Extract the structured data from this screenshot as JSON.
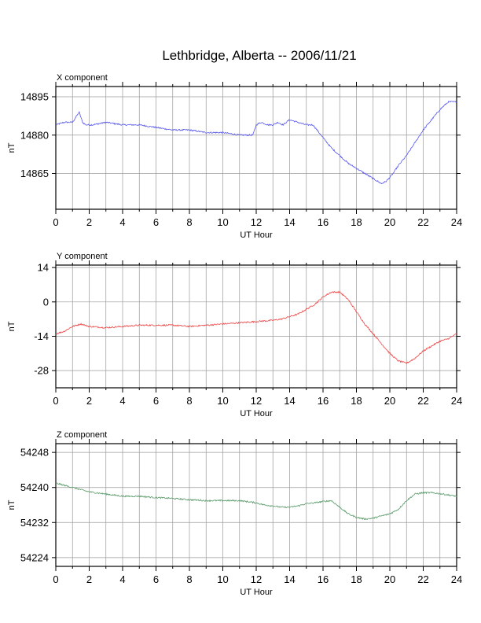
{
  "title": "Lethbridge, Alberta -- 2006/11/21",
  "chart_data": [
    {
      "type": "line",
      "panel_title": "X component",
      "xlabel": "UT Hour",
      "ylabel": "nT",
      "xlim": [
        0,
        24
      ],
      "ylim": [
        14851,
        14899
      ],
      "xticks": [
        0,
        2,
        4,
        6,
        8,
        10,
        12,
        14,
        16,
        18,
        20,
        22,
        24
      ],
      "yticks": [
        14865,
        14880,
        14895
      ],
      "grid": true,
      "color": "#5555ee",
      "x": [
        0,
        0.5,
        1.0,
        1.2,
        1.4,
        1.6,
        1.8,
        2.2,
        3,
        4,
        5,
        6,
        7,
        8,
        9,
        10,
        11,
        11.8,
        12.0,
        12.3,
        12.7,
        13.0,
        13.3,
        13.6,
        14.0,
        14.5,
        15.0,
        15.4,
        16.0,
        16.5,
        17.0,
        17.5,
        18.0,
        18.5,
        19.0,
        19.5,
        19.8,
        20.2,
        20.5,
        21.0,
        21.5,
        22.0,
        22.5,
        23.0,
        23.5,
        24.0
      ],
      "values": [
        14884,
        14885,
        14885,
        14887,
        14889,
        14885,
        14884,
        14884,
        14885,
        14884,
        14884,
        14883,
        14882,
        14882,
        14881,
        14881,
        14880,
        14880,
        14884,
        14885,
        14884,
        14884,
        14885,
        14884,
        14886,
        14885,
        14884,
        14884,
        14879,
        14875,
        14872,
        14869,
        14867,
        14865,
        14863,
        14861,
        14862,
        14865,
        14868,
        14872,
        14877,
        14882,
        14886,
        14890,
        14893,
        14893
      ]
    },
    {
      "type": "line",
      "panel_title": "Y component",
      "xlabel": "UT Hour",
      "ylabel": "nT",
      "xlim": [
        0,
        24
      ],
      "ylim": [
        -35,
        15
      ],
      "xticks": [
        0,
        2,
        4,
        6,
        8,
        10,
        12,
        14,
        16,
        18,
        20,
        22,
        24
      ],
      "yticks": [
        -28,
        -14,
        0,
        14
      ],
      "grid": true,
      "color": "#ee4444",
      "x": [
        0,
        0.5,
        1.0,
        1.5,
        2,
        3,
        4,
        5,
        6,
        7,
        8,
        9,
        10,
        11,
        12,
        13,
        13.5,
        14,
        14.5,
        15,
        15.5,
        16,
        16.5,
        17,
        17.5,
        18,
        18.5,
        19,
        19.5,
        20,
        20.5,
        21,
        21.5,
        22,
        22.5,
        23,
        23.5,
        24
      ],
      "values": [
        -13,
        -12,
        -10,
        -9,
        -10,
        -10.5,
        -10,
        -9.5,
        -9.5,
        -9.5,
        -10,
        -9.5,
        -9,
        -8.5,
        -8,
        -7.5,
        -7,
        -6,
        -5,
        -3,
        -1,
        2,
        4,
        4,
        1,
        -4,
        -9,
        -13,
        -17,
        -21,
        -24,
        -25,
        -23,
        -20,
        -18,
        -16,
        -15,
        -13
      ]
    },
    {
      "type": "line",
      "panel_title": "Z component",
      "xlabel": "UT Hour",
      "ylabel": "nT",
      "xlim": [
        0,
        24
      ],
      "ylim": [
        54222,
        54250
      ],
      "xticks": [
        0,
        2,
        4,
        6,
        8,
        10,
        12,
        14,
        16,
        18,
        20,
        22,
        24
      ],
      "yticks": [
        54224,
        54232,
        54240,
        54248
      ],
      "grid": true,
      "color": "#559966",
      "x": [
        0,
        0.5,
        1.0,
        1.5,
        2,
        3,
        4,
        5,
        6,
        7,
        8,
        9,
        10,
        11,
        12,
        12.5,
        13,
        13.5,
        14,
        14.5,
        15,
        15.5,
        16,
        16.5,
        17,
        17.5,
        18,
        18.5,
        19,
        19.5,
        20,
        20.5,
        21,
        21.5,
        22,
        22.5,
        23,
        23.5,
        24
      ],
      "values": [
        54241,
        54240.5,
        54240,
        54239.5,
        54239,
        54238.5,
        54238,
        54238,
        54237.7,
        54237.5,
        54237.2,
        54237,
        54237,
        54237,
        54236.5,
        54236,
        54235.8,
        54235.5,
        54235.5,
        54235.8,
        54236.3,
        54236.5,
        54236.8,
        54237,
        54235.5,
        54234,
        54233.2,
        54232.8,
        54233,
        54233.5,
        54234,
        54235,
        54237,
        54238.5,
        54238.8,
        54238.8,
        54238.6,
        54238.3,
        54238
      ]
    }
  ]
}
